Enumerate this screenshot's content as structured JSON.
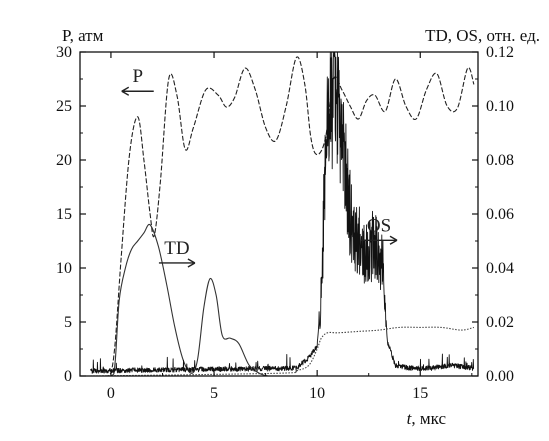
{
  "chart_data": {
    "type": "line",
    "title": "",
    "xlabel_italic": "t",
    "xlabel_rest": ", мкс",
    "ylabel_left": "P, атм",
    "ylabel_right": "TD, OS, отн. ед.",
    "xlim": [
      -1.5,
      17.8
    ],
    "ylim_left": [
      0,
      30
    ],
    "ylim_right": [
      0,
      0.12
    ],
    "x_ticks": [
      0,
      5,
      10,
      15
    ],
    "x_tick_labels": [
      "0",
      "5",
      "10",
      "15"
    ],
    "y_ticks_left": [
      0,
      5,
      10,
      15,
      20,
      25,
      30
    ],
    "y_tick_labels_left": [
      "0",
      "5",
      "10",
      "15",
      "20",
      "25",
      "30"
    ],
    "y_ticks_right": [
      0,
      0.02,
      0.04,
      0.06,
      0.08,
      0.1,
      0.12
    ],
    "y_tick_labels_right": [
      "0.00",
      "0.02",
      "0.04",
      "0.06",
      "0.08",
      "0.10",
      "0.12"
    ],
    "grid": false,
    "series": [
      {
        "name": "P",
        "axis": "left",
        "style": "dashed",
        "color": "#222222",
        "x": [
          -1.0,
          -0.2,
          0.0,
          0.2,
          0.5,
          0.9,
          1.3,
          1.6,
          1.9,
          2.1,
          2.4,
          2.8,
          3.2,
          3.6,
          4.0,
          4.6,
          5.2,
          5.6,
          6.0,
          6.5,
          7.0,
          7.5,
          8.0,
          8.5,
          9.0,
          9.4,
          9.7,
          10.0,
          10.4,
          10.8,
          11.2,
          11.6,
          12.0,
          12.4,
          12.8,
          13.3,
          13.8,
          14.3,
          14.8,
          15.3,
          15.8,
          16.3,
          16.8,
          17.3,
          17.6
        ],
        "y": [
          0,
          0,
          0.3,
          3,
          11,
          20.5,
          24,
          20,
          15,
          13,
          18,
          27.5,
          26,
          21,
          23,
          26.5,
          26,
          24.9,
          25.8,
          28.5,
          26.5,
          23,
          21.8,
          25,
          29.5,
          27,
          22,
          20.5,
          22,
          27.5,
          26.5,
          25,
          23.8,
          25.5,
          26,
          24.5,
          27.5,
          25,
          23.8,
          26.5,
          28,
          25,
          24.8,
          28.5,
          27
        ]
      },
      {
        "name": "TD",
        "axis": "right",
        "style": "solid",
        "color": "#333333",
        "x": [
          -1.0,
          0.0,
          0.2,
          0.4,
          0.7,
          1.0,
          1.3,
          1.6,
          1.9,
          2.3,
          2.7,
          3.1,
          3.5,
          3.9,
          4.2,
          4.5,
          4.8,
          5.1,
          5.4,
          5.8,
          6.2,
          6.7,
          7.2,
          7.6
        ],
        "y": [
          0,
          0,
          0.005,
          0.028,
          0.04,
          0.047,
          0.05,
          0.053,
          0.056,
          0.048,
          0.034,
          0.018,
          0.006,
          0.001,
          0.006,
          0.025,
          0.036,
          0.03,
          0.015,
          0.014,
          0.012,
          0.004,
          0.001,
          0
        ]
      },
      {
        "name": "OS",
        "axis": "right",
        "style": "solid",
        "color": "#111111",
        "noisy": true,
        "x": [
          -1.0,
          9.0,
          9.6,
          10.0,
          10.2,
          10.4,
          10.6,
          10.8,
          11.0,
          11.3,
          11.6,
          11.9,
          12.2,
          12.5,
          12.8,
          13.0,
          13.2,
          13.4,
          13.8,
          14.5,
          15.5,
          16.5,
          17.6
        ],
        "y": [
          0.001,
          0.002,
          0.006,
          0.01,
          0.03,
          0.08,
          0.1,
          0.108,
          0.098,
          0.08,
          0.06,
          0.052,
          0.048,
          0.046,
          0.05,
          0.045,
          0.04,
          0.012,
          0.003,
          0.002,
          0.002,
          0.003,
          0.002
        ]
      },
      {
        "name": "",
        "axis": "right",
        "style": "dotted",
        "color": "#444444",
        "x": [
          -1.0,
          8.0,
          9.0,
          9.6,
          10.0,
          10.2,
          10.5,
          11.0,
          12.0,
          13.0,
          14.0,
          15.0,
          16.0,
          17.0,
          17.6
        ],
        "y": [
          0,
          0.001,
          0.002,
          0.004,
          0.01,
          0.014,
          0.016,
          0.016,
          0.0165,
          0.017,
          0.018,
          0.018,
          0.018,
          0.017,
          0.018
        ]
      }
    ],
    "annotations": [
      {
        "text": "P",
        "x": 1.3,
        "y_left": 27.2,
        "arrow": "left"
      },
      {
        "text": "TD",
        "x": 3.2,
        "y_left": 11.3,
        "arrow": "right"
      },
      {
        "text": "OS",
        "x": 13.0,
        "y_left": 13.4,
        "arrow": "right"
      }
    ]
  }
}
